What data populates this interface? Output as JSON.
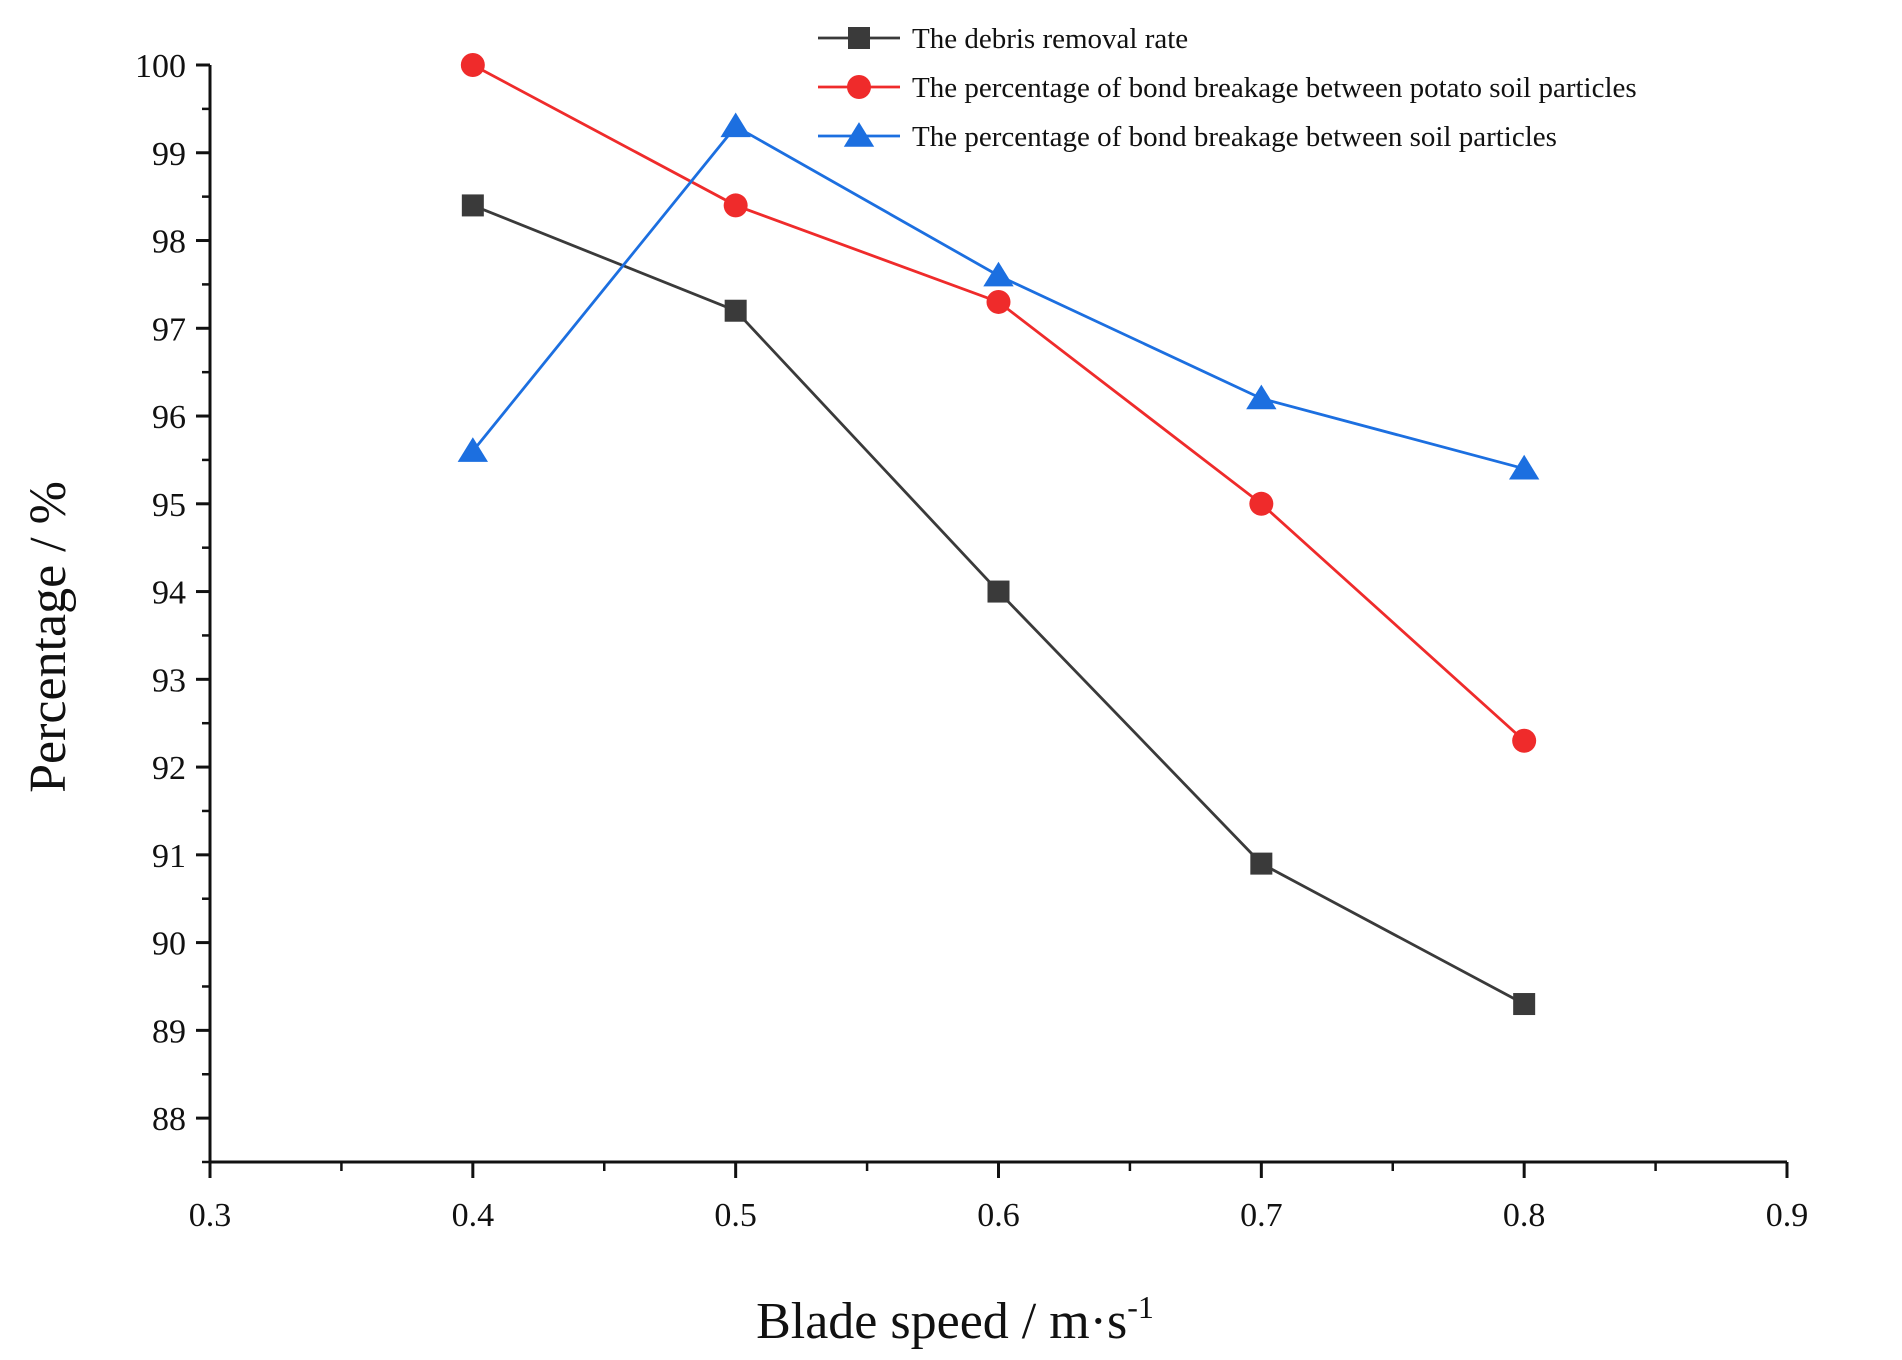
{
  "chart_data": {
    "type": "line",
    "title": "",
    "xlabel": "Blade speed / m·s",
    "xlabel_superscript": "-1",
    "ylabel": "Percentage / %",
    "xlim": [
      0.3,
      0.9
    ],
    "ylim": [
      87.5,
      100
    ],
    "xticks": [
      0.3,
      0.4,
      0.5,
      0.6,
      0.7,
      0.8,
      0.9
    ],
    "xtick_labels": [
      "0.3",
      "0.4",
      "0.5",
      "0.6",
      "0.7",
      "0.8",
      "0.9"
    ],
    "yticks": [
      88,
      89,
      90,
      91,
      92,
      93,
      94,
      95,
      96,
      97,
      98,
      99,
      100
    ],
    "ytick_labels": [
      "88",
      "89",
      "90",
      "91",
      "92",
      "93",
      "94",
      "95",
      "96",
      "97",
      "98",
      "99",
      "100"
    ],
    "grid": false,
    "legend_position": "top-right",
    "x": [
      0.4,
      0.5,
      0.6,
      0.7,
      0.8
    ],
    "series": [
      {
        "name": "The debris removal rate",
        "color": "#3a3a3a",
        "marker": "square",
        "values": [
          98.4,
          97.2,
          94.0,
          90.9,
          89.3
        ]
      },
      {
        "name": "The percentage of bond breakage between potato soil particles",
        "color": "#ef2b2b",
        "marker": "circle",
        "values": [
          100.0,
          98.4,
          97.3,
          95.0,
          92.3
        ]
      },
      {
        "name": "The percentage of bond breakage between soil particles",
        "color": "#1c6fe0",
        "marker": "triangle",
        "values": [
          95.6,
          99.3,
          97.6,
          96.2,
          95.4
        ]
      }
    ]
  }
}
